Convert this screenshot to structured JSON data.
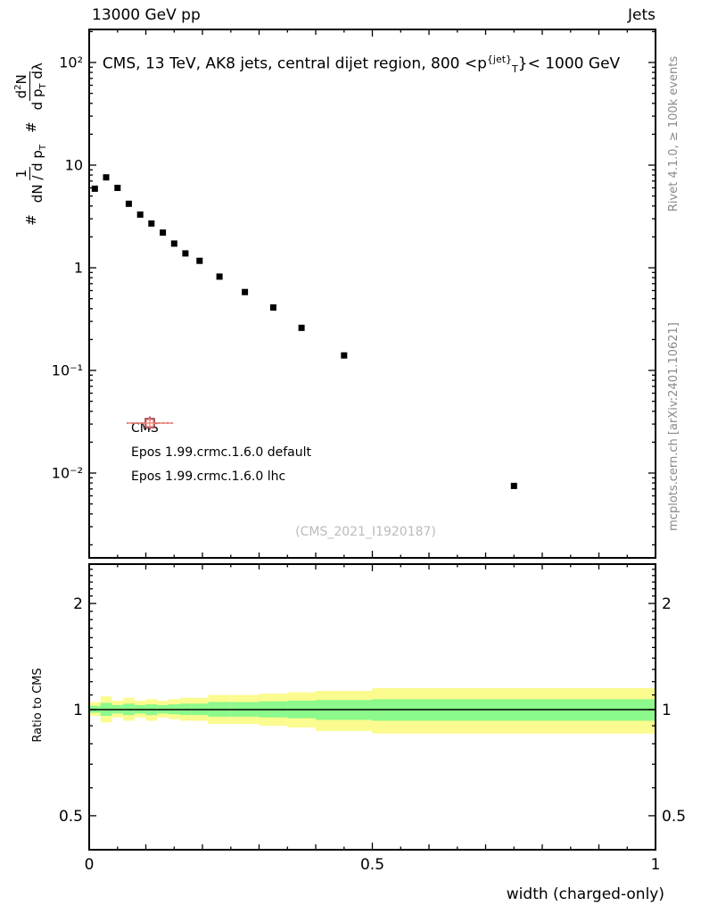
{
  "header": {
    "left": "13000 GeV pp",
    "right": "Jets"
  },
  "title": {
    "pre": "CMS, 13 TeV, AK8 jets, central dijet region, 800 <p",
    "sup": "{jet}",
    "sub": "T",
    "post": "}< 1000 GeV"
  },
  "watermark": "(CMS_2021_I1920187)",
  "side": {
    "top": "Rivet 4.1.0, ≥ 100k events",
    "bottom": "mcplots.cern.ch [arXiv:2401.10621]"
  },
  "ylabel": {
    "hash1": "#",
    "num1": "1",
    "den1_pre": "dN / d p",
    "den1_sub": "T",
    "hash2": "#",
    "num2_pre": "d",
    "num2_sup": "2",
    "num2_post": "N",
    "den2_pre": "d p",
    "den2_sub": "T",
    "den2_post": " dλ"
  },
  "ratio_ylabel": "Ratio to CMS",
  "legend": [
    {
      "label": "CMS",
      "marker": "filled-square",
      "color": "#000000"
    },
    {
      "label": "Epos 1.99.crmc.1.6.0 default",
      "marker": "crossed-open-square",
      "color": "#7a1a3a",
      "line": "dotted"
    },
    {
      "label": "Epos 1.99.crmc.1.6.0 lhc",
      "marker": "crossed-open-square",
      "color": "#ef8276",
      "line": "solid"
    }
  ],
  "colors": {
    "band_yellow": "#fbfb8f",
    "band_green": "#8bf98b",
    "frame": "#000000",
    "side_text": "#8a8a8a",
    "watermark": "#bbbbbb"
  },
  "chart_data": {
    "type": "scatter",
    "title": "CMS, 13 TeV, AK8 jets, central dijet region, 800 < pT^{jet} < 1000 GeV",
    "xlabel": "width (charged-only)",
    "ylabel": "1/(dN/dpT) d²N/(dpT dλ)",
    "xlim": [
      0,
      1
    ],
    "ylog": true,
    "ylim": [
      0.0015,
      209
    ],
    "xticks": [
      {
        "v": 0,
        "label": "0"
      },
      {
        "v": 0.5,
        "label": "0.5"
      },
      {
        "v": 1,
        "label": "1"
      }
    ],
    "yticks": [
      {
        "v": 100,
        "label": "10²"
      },
      {
        "v": 10,
        "label": "10"
      },
      {
        "v": 1,
        "label": "1"
      },
      {
        "v": 0.1,
        "label": "10⁻¹"
      },
      {
        "v": 0.01,
        "label": "10⁻²"
      }
    ],
    "bin_edges": [
      0,
      0.02,
      0.04,
      0.06,
      0.08,
      0.1,
      0.12,
      0.14,
      0.16,
      0.18,
      0.21,
      0.25,
      0.3,
      0.35,
      0.4,
      0.5,
      1.0
    ],
    "series": [
      {
        "name": "CMS",
        "marker": "filled-square",
        "color": "#000000",
        "x": [
          0.01,
          0.03,
          0.05,
          0.07,
          0.09,
          0.11,
          0.13,
          0.15,
          0.17,
          0.195,
          0.23,
          0.275,
          0.325,
          0.375,
          0.45,
          0.75
        ],
        "y": [
          5.9,
          7.6,
          6.0,
          4.2,
          3.3,
          2.7,
          2.2,
          1.72,
          1.38,
          1.17,
          0.82,
          0.58,
          0.41,
          0.26,
          0.14,
          0.0075
        ]
      }
    ],
    "ratio": {
      "ylog": true,
      "ylim": [
        0.4,
        2.6
      ],
      "yticks": [
        {
          "v": 0.5,
          "label": "0.5"
        },
        {
          "v": 1,
          "label": "1"
        },
        {
          "v": 2,
          "label": "2"
        }
      ],
      "reference_line": 1,
      "bands": {
        "yellow": [
          [
            0.96,
            1.05
          ],
          [
            0.92,
            1.09
          ],
          [
            0.95,
            1.06
          ],
          [
            0.93,
            1.08
          ],
          [
            0.95,
            1.06
          ],
          [
            0.93,
            1.07
          ],
          [
            0.95,
            1.06
          ],
          [
            0.94,
            1.07
          ],
          [
            0.93,
            1.08
          ],
          [
            0.93,
            1.08
          ],
          [
            0.91,
            1.1
          ],
          [
            0.91,
            1.1
          ],
          [
            0.9,
            1.11
          ],
          [
            0.89,
            1.12
          ],
          [
            0.87,
            1.13
          ],
          [
            0.855,
            1.15
          ]
        ],
        "green": [
          [
            0.98,
            1.025
          ],
          [
            0.96,
            1.045
          ],
          [
            0.975,
            1.03
          ],
          [
            0.965,
            1.04
          ],
          [
            0.975,
            1.03
          ],
          [
            0.965,
            1.035
          ],
          [
            0.975,
            1.03
          ],
          [
            0.97,
            1.035
          ],
          [
            0.965,
            1.04
          ],
          [
            0.965,
            1.04
          ],
          [
            0.955,
            1.05
          ],
          [
            0.955,
            1.05
          ],
          [
            0.95,
            1.055
          ],
          [
            0.945,
            1.06
          ],
          [
            0.935,
            1.065
          ],
          [
            0.93,
            1.07
          ]
        ]
      }
    }
  }
}
